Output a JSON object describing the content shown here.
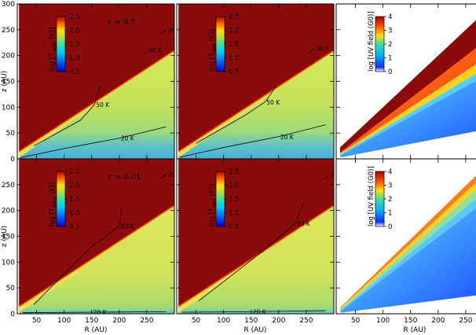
{
  "chart_data": [
    {
      "type": "heatmap",
      "row": 0,
      "col": 0,
      "variable": "tdust",
      "annotation": "ε = 0.5",
      "colorbar": {
        "label_pre": "log [T",
        "label_sub": "dust",
        "label_post": "(K)]",
        "ticks": [
          "0.5",
          "1.0",
          "1.5",
          "2.0",
          "2.5"
        ],
        "range": [
          0.5,
          2.5
        ]
      },
      "contours": [
        {
          "label": "20 K",
          "points": [
            [
              20,
              2
            ],
            [
              100,
              20
            ],
            [
              200,
              40
            ],
            [
              285,
              62
            ]
          ]
        },
        {
          "label": "50 K",
          "points": [
            [
              45,
              25
            ],
            [
              130,
              75
            ],
            [
              155,
              105
            ],
            [
              165,
              140
            ]
          ]
        },
        {
          "label": "50 K",
          "points": [
            [
              245,
              200
            ],
            [
              250,
              210
            ]
          ]
        },
        {
          "label": "20 K",
          "points": [
            [
              275,
              242
            ],
            [
              285,
              250
            ]
          ]
        }
      ]
    },
    {
      "type": "heatmap",
      "row": 0,
      "col": 1,
      "variable": "tgas",
      "colorbar": {
        "label_pre": "log [T",
        "label_sub": "gas",
        "label_post": "(K)]",
        "ticks": [
          "0.5",
          "1.0",
          "1.5",
          "2.0",
          "2.5"
        ],
        "range": [
          0.5,
          2.5
        ]
      },
      "contours": [
        {
          "label": "20 K",
          "points": [
            [
              20,
              3
            ],
            [
              100,
              22
            ],
            [
              200,
              43
            ],
            [
              285,
              66
            ]
          ]
        },
        {
          "label": "50 K",
          "points": [
            [
              50,
              30
            ],
            [
              140,
              85
            ],
            [
              175,
              110
            ],
            [
              195,
              140
            ]
          ]
        },
        {
          "label": "50 K",
          "points": [
            [
              255,
              205
            ],
            [
              265,
              215
            ]
          ]
        }
      ]
    },
    {
      "type": "heatmap",
      "row": 0,
      "col": 2,
      "variable": "uv",
      "colorbar": {
        "label_pre": "log [UV field (G0)]",
        "label_sub": "",
        "label_post": "",
        "ticks": [
          "0",
          "1",
          "2",
          "3",
          "4"
        ],
        "range": [
          0,
          4
        ]
      }
    },
    {
      "type": "heatmap",
      "row": 1,
      "col": 0,
      "variable": "tdust",
      "annotation": "ε = 0.01",
      "colorbar": {
        "label_pre": "log [T",
        "label_sub": "dust",
        "label_post": "(K)]",
        "ticks": [
          "0.5",
          "1.0",
          "1.5",
          "2.0",
          "2.5"
        ],
        "range": [
          0.5,
          2.5
        ]
      },
      "contours": [
        {
          "label": "20 K",
          "points": [
            [
              25,
              2
            ],
            [
              150,
              3
            ],
            [
              285,
              4
            ]
          ]
        },
        {
          "label": "50 K",
          "points": [
            [
              45,
              18
            ],
            [
              150,
              130
            ],
            [
              200,
              170
            ],
            [
              205,
              205
            ]
          ]
        },
        {
          "label": "20 K",
          "points": [
            [
              275,
              262
            ],
            [
              285,
              270
            ]
          ]
        }
      ]
    },
    {
      "type": "heatmap",
      "row": 1,
      "col": 1,
      "variable": "tgas",
      "colorbar": {
        "label_pre": "log [T",
        "label_sub": "gas",
        "label_post": "(K)]",
        "ticks": [
          "0.5",
          "1.0",
          "1.5",
          "2.0",
          "2.5"
        ],
        "range": [
          0.5,
          2.5
        ]
      },
      "contours": [
        {
          "label": "20 K",
          "points": [
            [
              25,
              3
            ],
            [
              150,
              4
            ],
            [
              285,
              6
            ]
          ]
        },
        {
          "label": "50 K",
          "points": [
            [
              55,
              25
            ],
            [
              170,
              120
            ],
            [
              230,
              175
            ],
            [
              245,
              215
            ]
          ]
        },
        {
          "label": "20 K",
          "points": [
            [
              285,
              260
            ],
            [
              290,
              268
            ]
          ]
        }
      ]
    },
    {
      "type": "heatmap",
      "row": 1,
      "col": 2,
      "variable": "uv",
      "colorbar": {
        "label_pre": "log [UV field (G0)]",
        "label_sub": "",
        "label_post": "",
        "ticks": [
          "0",
          "1",
          "2",
          "3",
          "4"
        ],
        "range": [
          0,
          4
        ]
      }
    }
  ],
  "axes": {
    "xlabel": "R (AU)",
    "ylabel": "z (AU)",
    "xticks": [
      "50",
      "100",
      "150",
      "200",
      "250"
    ],
    "yticks": [
      "0",
      "50",
      "100",
      "150",
      "200",
      "250",
      "300"
    ],
    "xlim": [
      15,
      300
    ],
    "ylim": [
      0,
      300
    ]
  },
  "colors": {
    "dark_red": "#8b0a0a"
  }
}
